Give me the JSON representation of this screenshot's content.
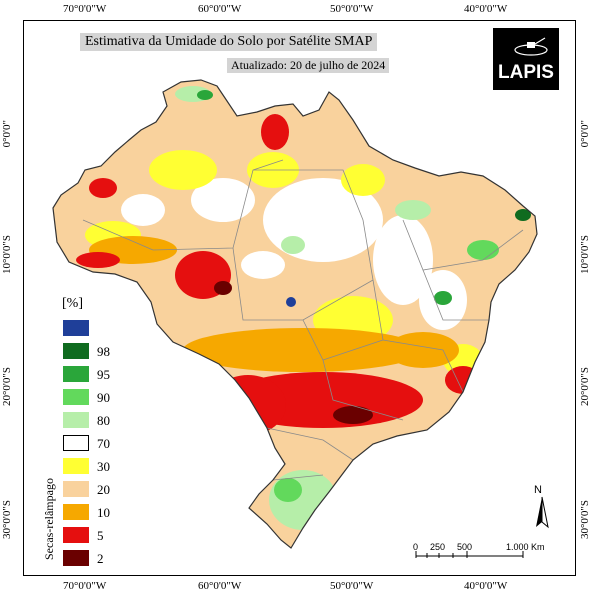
{
  "title": "Estimativa da Umidade do Solo por Satélite SMAP",
  "updated": "Atualizado: 20 de julho de 2024",
  "logo_text": "LAPIS",
  "axes": {
    "top": [
      "70°0'0\"W",
      "60°0'0\"W",
      "50°0'0\"W",
      "40°0'0\"W"
    ],
    "bottom": [
      "70°0'0\"W",
      "60°0'0\"W",
      "50°0'0\"W",
      "40°0'0\"W"
    ],
    "left": [
      "0°0'0\"",
      "10°0'0\"S",
      "20°0'0\"S",
      "30°0'0\"S"
    ],
    "right": [
      "0°0'0\"",
      "10°0'0\"S",
      "20°0'0\"S",
      "30°0'0\"S"
    ]
  },
  "legend": {
    "unit": "[%]",
    "side_label": "Secas-relâmpago",
    "classes": [
      {
        "label": "",
        "color": "#1f3f99"
      },
      {
        "label": "98",
        "color": "#0f6b1f"
      },
      {
        "label": "95",
        "color": "#2aa63a"
      },
      {
        "label": "90",
        "color": "#62d95c"
      },
      {
        "label": "80",
        "color": "#b6eea9"
      },
      {
        "label": "70",
        "color": "#ffffff"
      },
      {
        "label": "30",
        "color": "#ffff33"
      },
      {
        "label": "20",
        "color": "#f9d29d"
      },
      {
        "label": "10",
        "color": "#f6a800"
      },
      {
        "label": "5",
        "color": "#e50f0f"
      },
      {
        "label": "2",
        "color": "#6a0000"
      }
    ]
  },
  "north_label": "N",
  "scale_bar": {
    "ticks": [
      "0",
      "250",
      "500",
      "1.000 Km"
    ]
  }
}
